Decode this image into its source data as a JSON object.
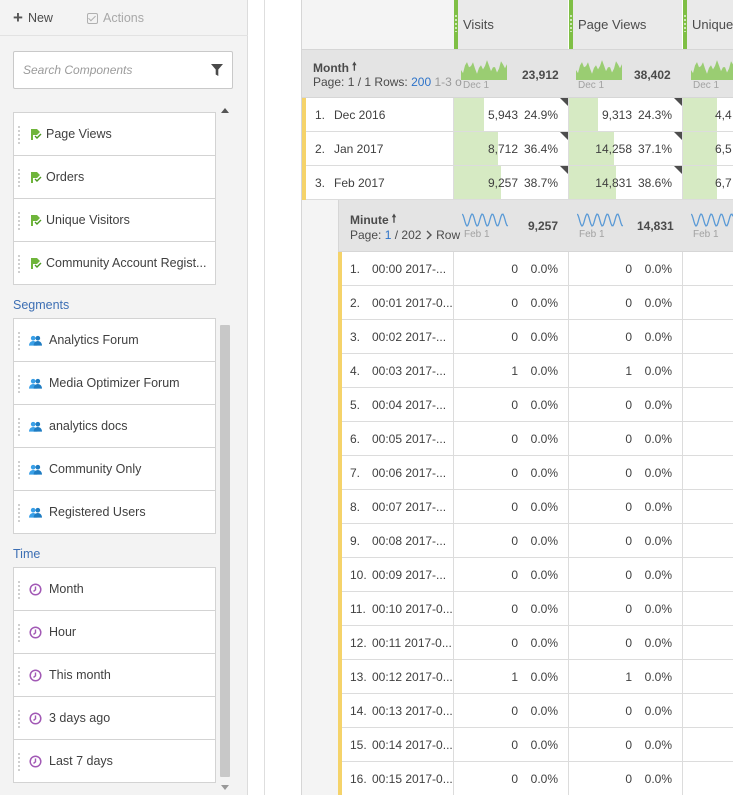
{
  "toolbar": {
    "new_label": "New",
    "actions_label": "Actions"
  },
  "search": {
    "placeholder": "Search Components"
  },
  "metrics": [
    {
      "label": "Page Views"
    },
    {
      "label": "Orders"
    },
    {
      "label": "Unique Visitors"
    },
    {
      "label": "Community Account Regist..."
    }
  ],
  "segments": {
    "heading": "Segments",
    "items": [
      {
        "label": "Analytics Forum"
      },
      {
        "label": "Media Optimizer Forum"
      },
      {
        "label": "analytics docs"
      },
      {
        "label": "Community Only"
      },
      {
        "label": "Registered Users"
      }
    ]
  },
  "time": {
    "heading": "Time",
    "items": [
      {
        "label": "Month"
      },
      {
        "label": "Hour"
      },
      {
        "label": "This month"
      },
      {
        "label": "3 days ago"
      },
      {
        "label": "Last 7 days"
      }
    ]
  },
  "colors": {
    "metric_green": "#7fbf45",
    "segment_blue": "#3aa0e8",
    "time_purple": "#a259b5",
    "row_yellow": "#f5d36a",
    "link_blue": "#2d73c9"
  },
  "table": {
    "columns": [
      {
        "title": "Visits"
      },
      {
        "title": "Page Views"
      },
      {
        "title": "Unique"
      }
    ],
    "month": {
      "title": "Month",
      "page_prefix": "Page: ",
      "page_current": "1",
      "page_sep": " / 1",
      "rows_label": "  Rows: ",
      "rows_value": "200",
      "range": "  1-3 o",
      "spark_date": "Dec 1",
      "totals": [
        "23,912",
        "38,402"
      ],
      "rows": [
        {
          "num": "1.",
          "name": "Dec 2016",
          "visits": "5,943",
          "visits_pct": "24.9%",
          "visits_share": 0.249,
          "pv": "9,313",
          "pv_pct": "24.3%",
          "pv_share": 0.243,
          "uv": "4,4"
        },
        {
          "num": "2.",
          "name": "Jan 2017",
          "visits": "8,712",
          "visits_pct": "36.4%",
          "visits_share": 0.364,
          "pv": "14,258",
          "pv_pct": "37.1%",
          "pv_share": 0.371,
          "uv": "6,5"
        },
        {
          "num": "3.",
          "name": "Feb 2017",
          "visits": "9,257",
          "visits_pct": "38.7%",
          "visits_share": 0.387,
          "pv": "14,831",
          "pv_pct": "38.6%",
          "pv_share": 0.386,
          "uv": "6,7"
        }
      ]
    },
    "minute": {
      "title": "Minute",
      "page_prefix": "Page: ",
      "page_current": "1",
      "page_sep": " / 202",
      "next_icon": "chevron-right-icon",
      "rows_label": " Row",
      "spark_date": "Feb 1",
      "totals": [
        "9,257",
        "14,831"
      ],
      "rows": [
        {
          "num": "1.",
          "name": "00:00 2017-...",
          "visits": "0",
          "visits_pct": "0.0%",
          "pv": "0",
          "pv_pct": "0.0%"
        },
        {
          "num": "2.",
          "name": "00:01 2017-0...",
          "visits": "0",
          "visits_pct": "0.0%",
          "pv": "0",
          "pv_pct": "0.0%"
        },
        {
          "num": "3.",
          "name": "00:02 2017-...",
          "visits": "0",
          "visits_pct": "0.0%",
          "pv": "0",
          "pv_pct": "0.0%"
        },
        {
          "num": "4.",
          "name": "00:03 2017-...",
          "visits": "1",
          "visits_pct": "0.0%",
          "pv": "1",
          "pv_pct": "0.0%"
        },
        {
          "num": "5.",
          "name": "00:04 2017-...",
          "visits": "0",
          "visits_pct": "0.0%",
          "pv": "0",
          "pv_pct": "0.0%"
        },
        {
          "num": "6.",
          "name": "00:05 2017-...",
          "visits": "0",
          "visits_pct": "0.0%",
          "pv": "0",
          "pv_pct": "0.0%"
        },
        {
          "num": "7.",
          "name": "00:06 2017-...",
          "visits": "0",
          "visits_pct": "0.0%",
          "pv": "0",
          "pv_pct": "0.0%"
        },
        {
          "num": "8.",
          "name": "00:07 2017-...",
          "visits": "0",
          "visits_pct": "0.0%",
          "pv": "0",
          "pv_pct": "0.0%"
        },
        {
          "num": "9.",
          "name": "00:08 2017-...",
          "visits": "0",
          "visits_pct": "0.0%",
          "pv": "0",
          "pv_pct": "0.0%"
        },
        {
          "num": "10.",
          "name": "00:09 2017-...",
          "visits": "0",
          "visits_pct": "0.0%",
          "pv": "0",
          "pv_pct": "0.0%"
        },
        {
          "num": "11.",
          "name": "00:10 2017-0...",
          "visits": "0",
          "visits_pct": "0.0%",
          "pv": "0",
          "pv_pct": "0.0%"
        },
        {
          "num": "12.",
          "name": "00:11 2017-0...",
          "visits": "0",
          "visits_pct": "0.0%",
          "pv": "0",
          "pv_pct": "0.0%"
        },
        {
          "num": "13.",
          "name": "00:12 2017-0...",
          "visits": "1",
          "visits_pct": "0.0%",
          "pv": "1",
          "pv_pct": "0.0%"
        },
        {
          "num": "14.",
          "name": "00:13 2017-0...",
          "visits": "0",
          "visits_pct": "0.0%",
          "pv": "0",
          "pv_pct": "0.0%"
        },
        {
          "num": "15.",
          "name": "00:14 2017-0...",
          "visits": "0",
          "visits_pct": "0.0%",
          "pv": "0",
          "pv_pct": "0.0%"
        },
        {
          "num": "16.",
          "name": "00:15 2017-0...",
          "visits": "0",
          "visits_pct": "0.0%",
          "pv": "0",
          "pv_pct": "0.0%"
        }
      ]
    }
  }
}
